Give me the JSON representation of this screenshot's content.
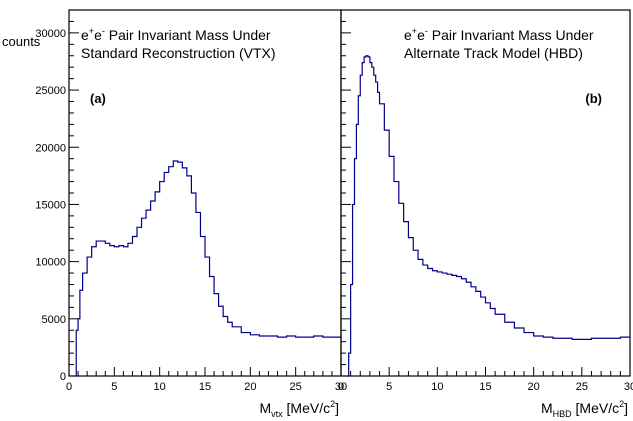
{
  "y_axis_label": "counts",
  "chart_data": [
    {
      "type": "line",
      "panel_label": "(b)",
      "title_lines": [
        {
          "base": "e",
          "sup1": "+",
          "mid": "e",
          "sup2": "-",
          "rest": " Pair Invariant Mass Under"
        },
        {
          "text": "Standard Reconstruction (VTX)"
        }
      ],
      "panel_tag": "(a)",
      "xlabel": {
        "main": "M",
        "sub": "vtx",
        "unit": " [MeV/c",
        "sup": "2",
        "close": "]"
      },
      "xlim": [
        0,
        30
      ],
      "ylim": [
        0,
        32000
      ],
      "x_ticks": [
        "0",
        "5",
        "10",
        "15",
        "20",
        "25",
        "30"
      ],
      "y_ticks": [
        "0",
        "5000",
        "10000",
        "15000",
        "20000",
        "25000",
        "30000"
      ],
      "series": [
        {
          "color": "#00008b",
          "x": [
            0.6,
            0.8,
            1.0,
            1.2,
            1.5,
            2.0,
            2.5,
            3.0,
            3.5,
            4.0,
            4.5,
            5.0,
            5.5,
            6.0,
            6.5,
            7.0,
            7.5,
            8.0,
            8.5,
            9.0,
            9.5,
            10.0,
            10.5,
            11.0,
            11.5,
            12.0,
            12.5,
            13.0,
            13.5,
            14.0,
            14.5,
            15.0,
            15.5,
            16.0,
            16.5,
            17.0,
            17.5,
            18.0,
            19.0,
            20.0,
            21.0,
            22.0,
            23.0,
            24.0,
            25.0,
            26.0,
            27.0,
            28.0,
            29.0,
            30.0
          ],
          "y": [
            0,
            4000,
            5000,
            7500,
            9000,
            10400,
            11300,
            11800,
            11800,
            11600,
            11400,
            11300,
            11400,
            11300,
            11600,
            12200,
            13000,
            13800,
            14500,
            15300,
            16100,
            17000,
            17800,
            18300,
            18800,
            18700,
            18200,
            17500,
            16000,
            14300,
            12200,
            10400,
            8700,
            7200,
            6100,
            5200,
            4700,
            4300,
            3800,
            3600,
            3500,
            3500,
            3400,
            3500,
            3400,
            3400,
            3500,
            3400,
            3400,
            3300
          ]
        }
      ]
    },
    {
      "type": "line",
      "panel_tag": "(b)",
      "title_lines": [
        {
          "base": "e",
          "sup1": "+",
          "mid": "e",
          "sup2": "-",
          "rest": " Pair Invariant Mass Under"
        },
        {
          "text": "Alternate Track Model (HBD)"
        }
      ],
      "xlabel": {
        "main": "M",
        "sub": "HBD",
        "unit": " [MeV/c",
        "sup": "2",
        "close": "]"
      },
      "xlim": [
        0,
        30
      ],
      "ylim": [
        0,
        32000
      ],
      "x_ticks": [
        "0",
        "5",
        "10",
        "15",
        "20",
        "25",
        "30"
      ],
      "series": [
        {
          "color": "#00008b",
          "x": [
            0.6,
            0.8,
            1.0,
            1.2,
            1.4,
            1.6,
            1.8,
            2.0,
            2.2,
            2.4,
            2.6,
            2.8,
            3.0,
            3.2,
            3.4,
            3.6,
            3.8,
            4.0,
            4.5,
            5.0,
            5.5,
            6.0,
            6.5,
            7.0,
            7.5,
            8.0,
            8.5,
            9.0,
            9.5,
            10.0,
            10.5,
            11.0,
            11.5,
            12.0,
            12.5,
            13.0,
            13.5,
            14.0,
            14.5,
            15.0,
            15.5,
            16.0,
            17.0,
            18.0,
            19.0,
            20.0,
            21.0,
            22.0,
            23.0,
            24.0,
            25.0,
            26.0,
            27.0,
            28.0,
            29.0,
            30.0
          ],
          "y": [
            0,
            2000,
            8000,
            15000,
            19000,
            22000,
            24500,
            26300,
            27400,
            27900,
            28000,
            27900,
            27400,
            27000,
            26300,
            25700,
            24800,
            23800,
            21500,
            19200,
            17000,
            15100,
            13500,
            12100,
            11000,
            10200,
            9700,
            9400,
            9200,
            9100,
            9000,
            8900,
            8800,
            8700,
            8500,
            8200,
            7800,
            7400,
            6900,
            6400,
            5900,
            5400,
            4700,
            4200,
            3800,
            3500,
            3400,
            3300,
            3300,
            3200,
            3200,
            3300,
            3300,
            3300,
            3400,
            3400
          ]
        }
      ]
    }
  ]
}
